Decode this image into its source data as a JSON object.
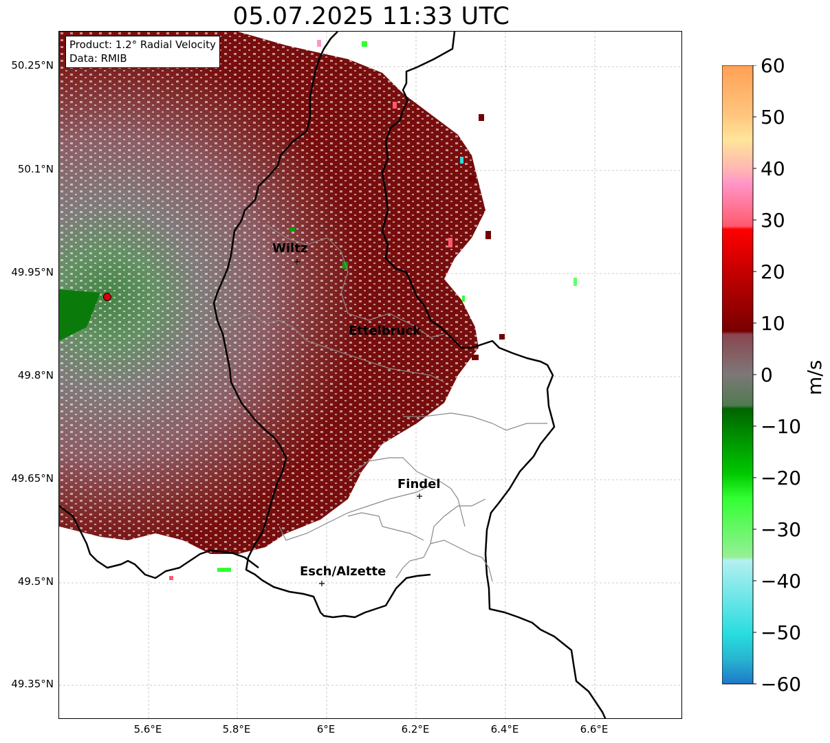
{
  "title": "05.07.2025 11:33 UTC",
  "info": {
    "product": "Product: 1.2° Radial Velocity",
    "source": "Data: RMIB"
  },
  "axes": {
    "lat_ticks": [
      "50.25°N",
      "50.1°N",
      "49.95°N",
      "49.8°N",
      "49.65°N",
      "49.5°N",
      "49.35°N"
    ],
    "lon_ticks": [
      "5.6°E",
      "5.8°E",
      "6°E",
      "6.2°E",
      "6.4°E",
      "6.6°E"
    ]
  },
  "cities": [
    {
      "name": "Wiltz"
    },
    {
      "name": "Ettelbruck"
    },
    {
      "name": "Findel"
    },
    {
      "name": "Esch/Alzette"
    }
  ],
  "colorbar": {
    "unit": "m/s",
    "ticks": [
      "60",
      "50",
      "40",
      "30",
      "20",
      "10",
      "0",
      "−10",
      "−20",
      "−30",
      "−40",
      "−50",
      "−60"
    ],
    "stops": [
      {
        "label": "60",
        "color": "#ffa055"
      },
      {
        "label": "50",
        "color": "#ffc57e"
      },
      {
        "label": "45",
        "color": "#ffe59a"
      },
      {
        "label": "40",
        "color": "#ff96c8"
      },
      {
        "label": "30",
        "color": "#ff5a6e"
      },
      {
        "label": "28",
        "color": "#ff0000"
      },
      {
        "label": "20",
        "color": "#c80000"
      },
      {
        "label": "10",
        "color": "#780000"
      },
      {
        "label": "8",
        "color": "#8a4650"
      },
      {
        "label": "0",
        "color": "#7d7878"
      },
      {
        "label": "-3",
        "color": "#507a50"
      },
      {
        "label": "-8",
        "color": "#006400"
      },
      {
        "label": "-20",
        "color": "#00c800"
      },
      {
        "label": "-30",
        "color": "#32ff32"
      },
      {
        "label": "-35",
        "color": "#96f096"
      },
      {
        "label": "-37",
        "color": "#b4f0f0"
      },
      {
        "label": "-45",
        "color": "#64e6e6"
      },
      {
        "label": "-52",
        "color": "#28dce0"
      },
      {
        "label": "-58",
        "color": "#1e96c8"
      },
      {
        "label": "-60",
        "color": "#1e78c8"
      }
    ]
  },
  "radar_site": {
    "color": "#e00000"
  }
}
